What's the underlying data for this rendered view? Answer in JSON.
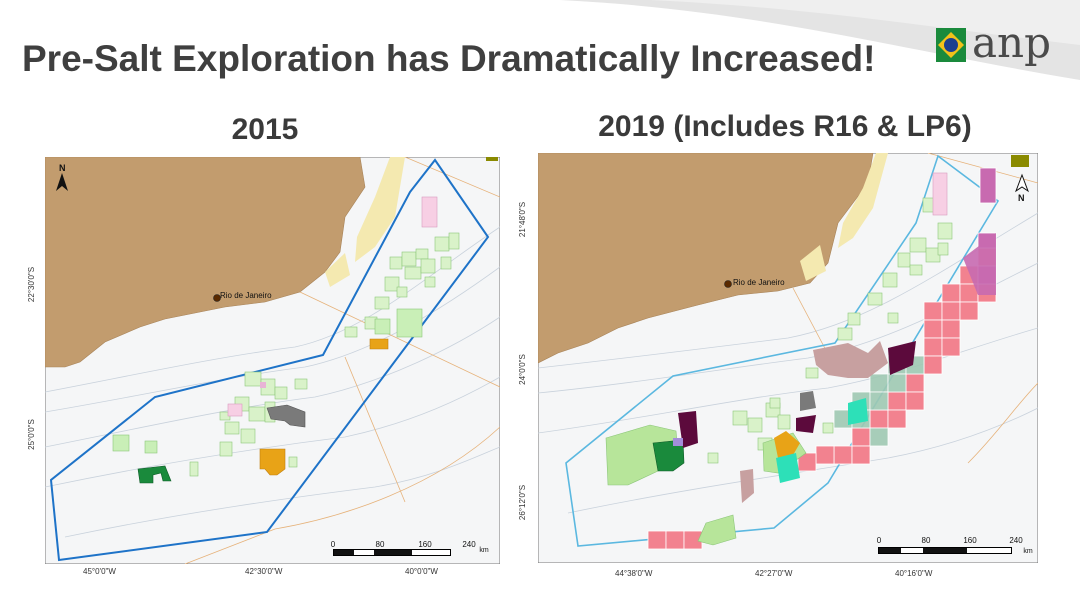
{
  "slide": {
    "title": "Pre-Salt Exploration has Dramatically Increased!",
    "logo_text": "anp",
    "colors": {
      "title": "#3f3f3f",
      "land": "#c19a6b",
      "ocean": "#f4f6f7",
      "basin_outline": "#1e73c8",
      "polygon_2019": "#5bb8e0"
    }
  },
  "map_2015": {
    "title": "2015",
    "city": "Rio de Janeiro",
    "lat_labels": [
      "22°30'0\"S",
      "25°0'0\"S"
    ],
    "lon_labels": [
      "45°0'0\"W",
      "42°30'0\"W",
      "40°0'0\"W"
    ],
    "scale_ticks": [
      "0",
      "80",
      "160",
      "240"
    ],
    "scale_unit": "km",
    "north_label": "N"
  },
  "map_2019": {
    "title": "2019 (Includes R16 & LP6)",
    "city": "Rio de Janeiro",
    "lat_labels": [
      "21°48'0\"S",
      "24°0'0\"S",
      "26°12'0\"S"
    ],
    "lon_labels": [
      "44°38'0\"W",
      "42°27'0\"W",
      "40°16'0\"W"
    ],
    "scale_ticks": [
      "0",
      "80",
      "160",
      "240"
    ],
    "scale_unit": "km",
    "north_label": "N"
  }
}
